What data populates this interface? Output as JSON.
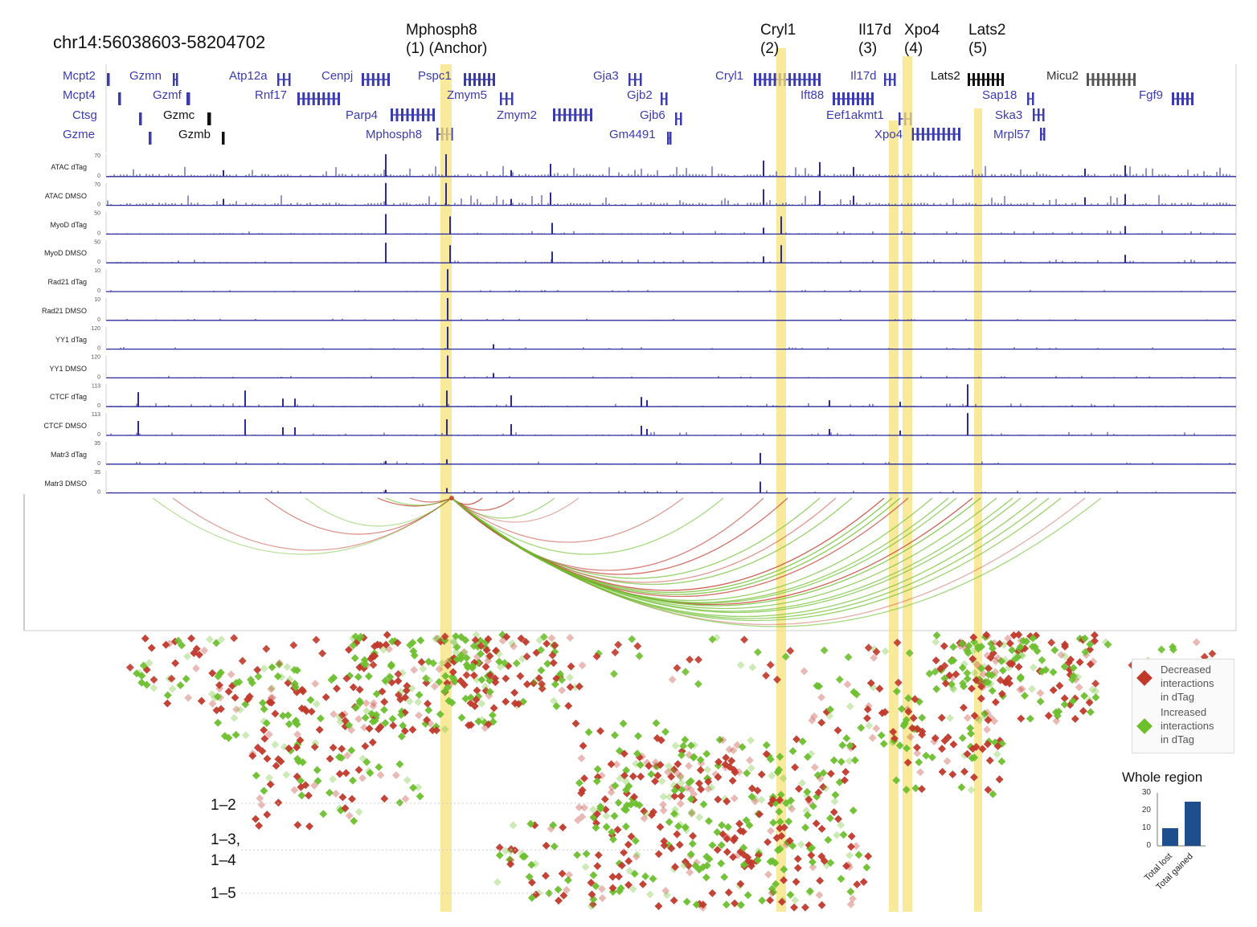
{
  "region_label": "chr14:56038603-58204702",
  "anchors": [
    {
      "line1": "Mphosph8",
      "line2": "(1) (Anchor)"
    },
    {
      "line1": "Cryl1",
      "line2": "(2)"
    },
    {
      "line1": "Il17d",
      "line2": "(3)"
    },
    {
      "line1": "Xpo4",
      "line2": "(4)"
    },
    {
      "line1": "Lats2",
      "line2": "(5)"
    }
  ],
  "genes": [
    {
      "name": "Mcpt2",
      "style": "blue"
    },
    {
      "name": "Mcpt4",
      "style": "blue"
    },
    {
      "name": "Ctsg",
      "style": "blue"
    },
    {
      "name": "Gzme",
      "style": "blue"
    },
    {
      "name": "Gzmn",
      "style": "blue"
    },
    {
      "name": "Gzmf",
      "style": "blue"
    },
    {
      "name": "Gzmc",
      "style": "black"
    },
    {
      "name": "Gzmb",
      "style": "black"
    },
    {
      "name": "Atp12a",
      "style": "blue"
    },
    {
      "name": "Rnf17",
      "style": "blue"
    },
    {
      "name": "Cenpj",
      "style": "blue"
    },
    {
      "name": "Parp4",
      "style": "blue"
    },
    {
      "name": "Mphosph8",
      "style": "blue"
    },
    {
      "name": "Pspc1",
      "style": "blue"
    },
    {
      "name": "Zmym5",
      "style": "blue"
    },
    {
      "name": "Zmym2",
      "style": "blue"
    },
    {
      "name": "Gja3",
      "style": "blue"
    },
    {
      "name": "Gjb2",
      "style": "blue"
    },
    {
      "name": "Gjb6",
      "style": "blue"
    },
    {
      "name": "Gm4491",
      "style": "blue"
    },
    {
      "name": "Cryl1",
      "style": "blue"
    },
    {
      "name": "Il17d",
      "style": "blue"
    },
    {
      "name": "Ift88",
      "style": "blue"
    },
    {
      "name": "Eef1akmt1",
      "style": "blue"
    },
    {
      "name": "Xpo4",
      "style": "blue"
    },
    {
      "name": "Lats2",
      "style": "black"
    },
    {
      "name": "Sap18",
      "style": "blue"
    },
    {
      "name": "Ska3",
      "style": "blue"
    },
    {
      "name": "Mrpl57",
      "style": "blue"
    },
    {
      "name": "Micu2",
      "style": "gray"
    },
    {
      "name": "Fgf9",
      "style": "blue"
    }
  ],
  "tracks": [
    {
      "name": "ATAC dTag",
      "max": "70"
    },
    {
      "name": "ATAC DMSO",
      "max": "70"
    },
    {
      "name": "MyoD dTag",
      "max": "50"
    },
    {
      "name": "MyoD DMSO",
      "max": "50"
    },
    {
      "name": "Rad21 dTag",
      "max": "10"
    },
    {
      "name": "Rad21 DMSO",
      "max": "10"
    },
    {
      "name": "YY1 dTag",
      "max": "120"
    },
    {
      "name": "YY1 DMSO",
      "max": "120"
    },
    {
      "name": "CTCF dTag",
      "max": "113"
    },
    {
      "name": "CTCF DMSO",
      "max": "113"
    },
    {
      "name": "Matr3 dTag",
      "max": "35"
    },
    {
      "name": "Matr3 DMSO",
      "max": "35"
    }
  ],
  "track_zero": "0",
  "pair_labels": [
    "1–2",
    "1–3,",
    "1–4",
    "1–5"
  ],
  "legend": {
    "decreased": [
      "Decreased",
      "interactions",
      "in dTag"
    ],
    "increased": [
      "Increased",
      "interactions",
      "in dTag"
    ],
    "decreased_color": "#c0392b",
    "increased_color": "#6dbf2e"
  },
  "chart_data": {
    "type": "bar",
    "title": "Whole region",
    "categories": [
      "Total lost",
      "Total gained"
    ],
    "values": [
      10,
      25
    ],
    "ylim": [
      0,
      30
    ],
    "yticks": [
      "0",
      "10",
      "20",
      "30"
    ],
    "color": "#1f4e8c"
  },
  "colors": {
    "highlight": "#f7e27a",
    "track": "#2b2b9e",
    "gene": "#3b3bb0"
  }
}
